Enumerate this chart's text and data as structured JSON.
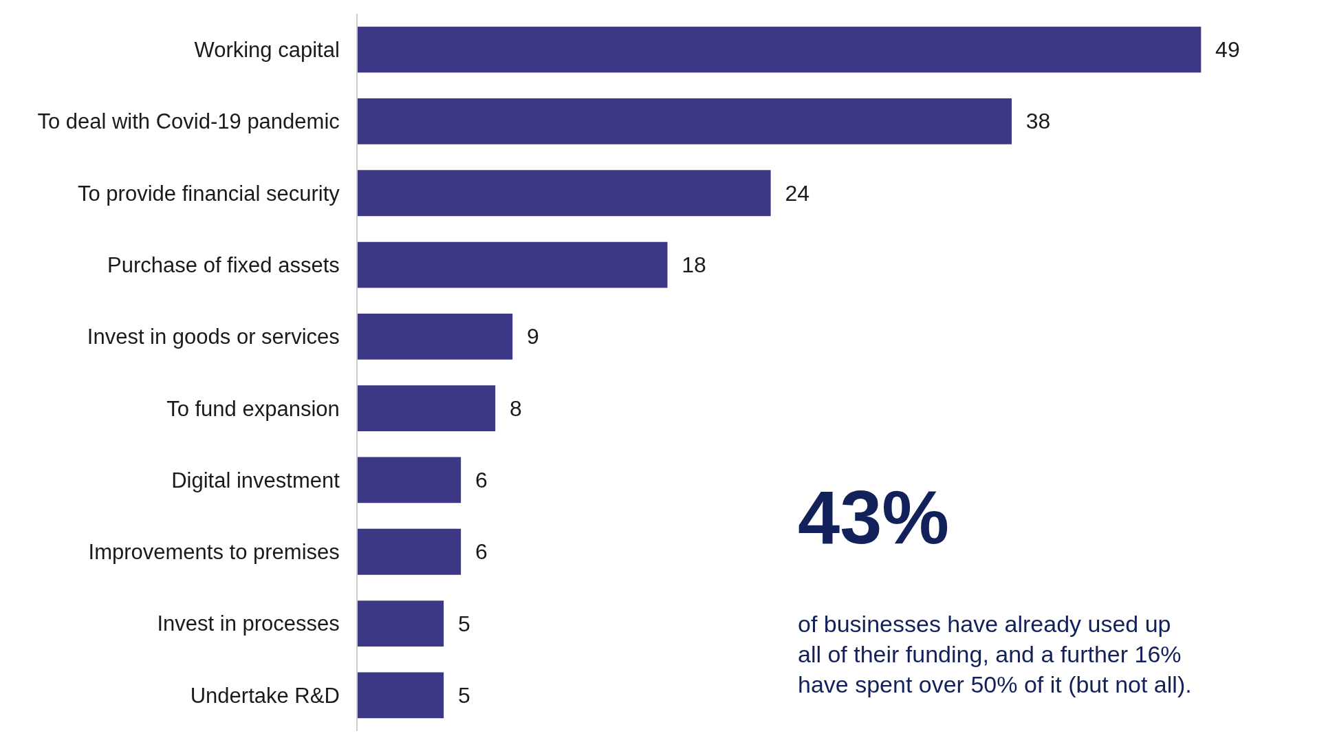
{
  "chart_data": {
    "type": "bar",
    "orientation": "horizontal",
    "categories": [
      "Working capital",
      "To deal with Covid-19 pandemic",
      "To provide financial security",
      "Purchase of fixed assets",
      "Invest in goods or services",
      "To fund expansion",
      "Digital investment",
      "Improvements to premises",
      "Invest in processes",
      "Undertake R&D"
    ],
    "values": [
      49,
      38,
      24,
      18,
      9,
      8,
      6,
      6,
      5,
      5
    ],
    "color": "#3d3886",
    "data_labels": true,
    "annotations": [
      "43%",
      "of businesses have already used up\nall of their funding, and a further 16%\nhave spent over 50% of it (but not all)."
    ]
  }
}
